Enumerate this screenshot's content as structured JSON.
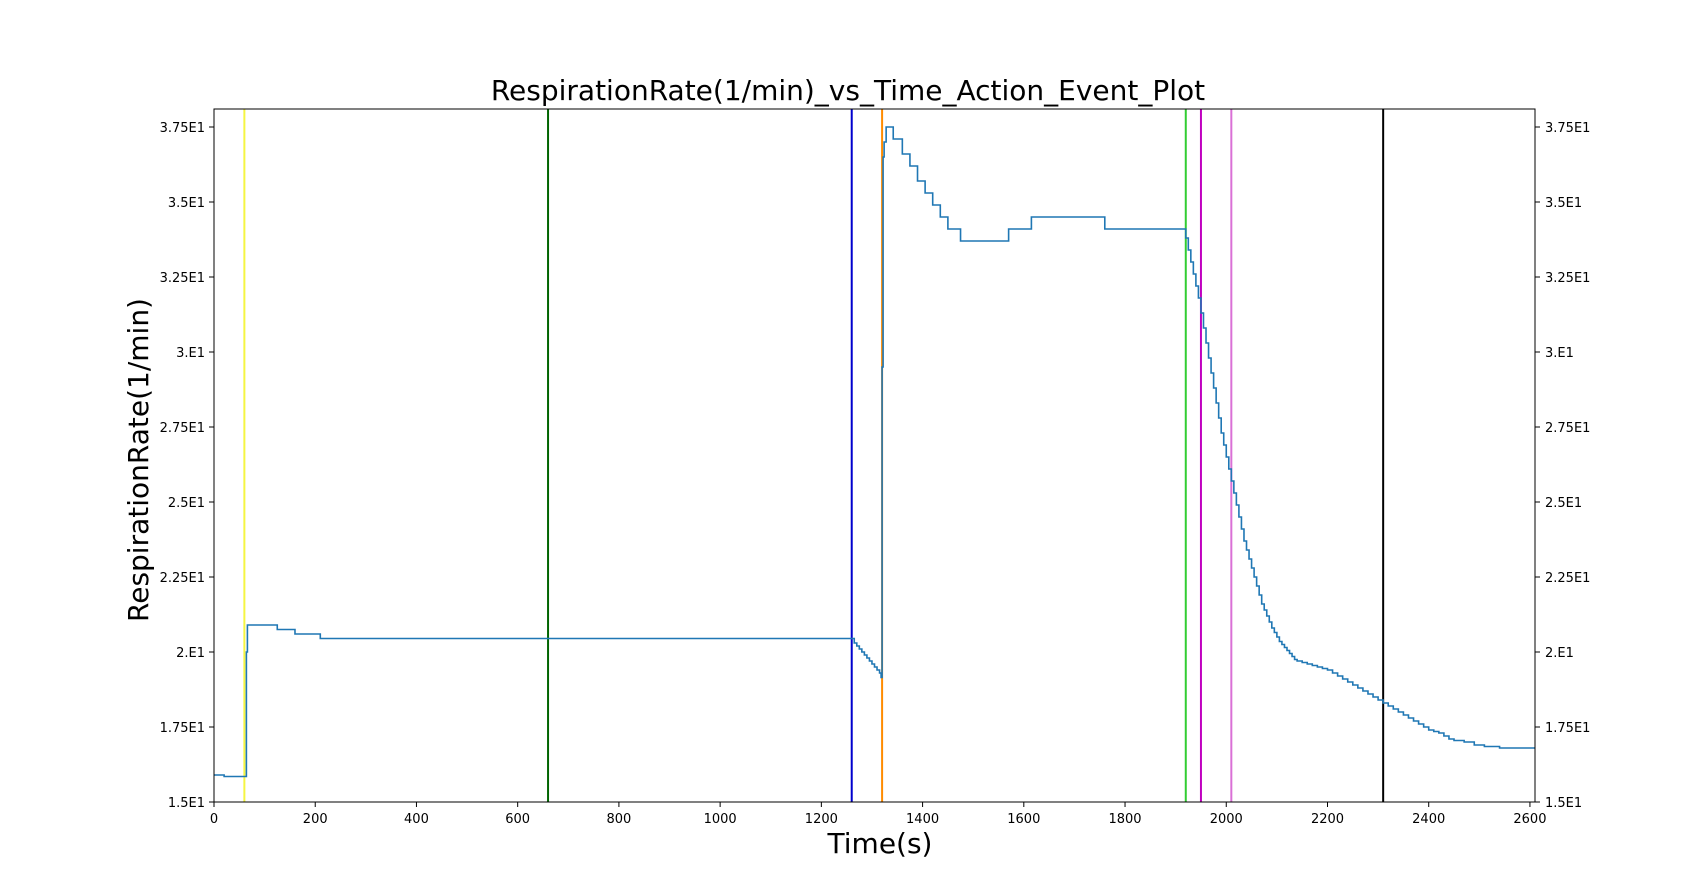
{
  "chart_data": {
    "type": "line",
    "title": "RespirationRate(1/min)_vs_Time_Action_Event_Plot",
    "xlabel": "Time(s)",
    "ylabel": "RespirationRate(1/min)",
    "xlim": [
      0,
      2610
    ],
    "ylim": [
      15.0,
      38.1
    ],
    "xticks": [
      0,
      200,
      400,
      600,
      800,
      1000,
      1200,
      1400,
      1600,
      1800,
      2000,
      2200,
      2400,
      2600
    ],
    "xtick_labels": [
      "0",
      "200",
      "400",
      "600",
      "800",
      "1000",
      "1200",
      "1400",
      "1600",
      "1800",
      "2000",
      "2200",
      "2400",
      "2600"
    ],
    "yticks": [
      15.0,
      17.5,
      20.0,
      22.5,
      25.0,
      27.5,
      30.0,
      32.5,
      35.0,
      37.5
    ],
    "ytick_labels": [
      "1.5E1",
      "1.75E1",
      "2.E1",
      "2.25E1",
      "2.5E1",
      "2.75E1",
      "3.E1",
      "3.25E1",
      "3.5E1",
      "3.75E1"
    ],
    "grid": false,
    "right_axis_labels": true,
    "series": [
      {
        "color": "#1f77b4",
        "step": true,
        "x": [
          0,
          20,
          62,
          64,
          66,
          68,
          125,
          160,
          210,
          1260,
          1265,
          1270,
          1275,
          1280,
          1285,
          1290,
          1295,
          1300,
          1305,
          1310,
          1315,
          1318,
          1320,
          1322,
          1324,
          1328,
          1342,
          1360,
          1375,
          1390,
          1405,
          1420,
          1435,
          1450,
          1475,
          1570,
          1615,
          1760,
          1880,
          1915,
          1920,
          1925,
          1930,
          1935,
          1940,
          1945,
          1950,
          1955,
          1960,
          1965,
          1970,
          1975,
          1980,
          1985,
          1990,
          1995,
          2000,
          2005,
          2010,
          2015,
          2020,
          2025,
          2030,
          2035,
          2040,
          2045,
          2050,
          2055,
          2060,
          2065,
          2070,
          2075,
          2080,
          2085,
          2090,
          2095,
          2100,
          2105,
          2110,
          2115,
          2120,
          2125,
          2130,
          2135,
          2140,
          2150,
          2160,
          2170,
          2180,
          2190,
          2200,
          2210,
          2220,
          2230,
          2240,
          2250,
          2260,
          2270,
          2280,
          2290,
          2300,
          2310,
          2320,
          2330,
          2340,
          2350,
          2360,
          2370,
          2380,
          2390,
          2400,
          2410,
          2420,
          2430,
          2440,
          2450,
          2470,
          2490,
          2510,
          2540,
          2570,
          2610
        ],
        "y": [
          15.9,
          15.85,
          15.85,
          20.0,
          20.9,
          20.9,
          20.75,
          20.6,
          20.45,
          20.45,
          20.3,
          20.2,
          20.1,
          20.0,
          19.9,
          19.8,
          19.7,
          19.6,
          19.5,
          19.4,
          19.3,
          19.15,
          29.5,
          36.5,
          37.0,
          37.5,
          37.1,
          36.6,
          36.2,
          35.7,
          35.3,
          34.9,
          34.5,
          34.1,
          33.7,
          34.1,
          34.5,
          34.1,
          34.1,
          34.1,
          33.8,
          33.4,
          33.0,
          32.6,
          32.2,
          31.8,
          31.3,
          30.8,
          30.3,
          29.8,
          29.3,
          28.8,
          28.3,
          27.8,
          27.3,
          26.9,
          26.5,
          26.1,
          25.7,
          25.3,
          24.9,
          24.5,
          24.1,
          23.7,
          23.4,
          23.1,
          22.8,
          22.5,
          22.2,
          21.9,
          21.6,
          21.4,
          21.2,
          21.0,
          20.8,
          20.65,
          20.5,
          20.35,
          20.25,
          20.15,
          20.05,
          19.95,
          19.85,
          19.75,
          19.7,
          19.65,
          19.6,
          19.55,
          19.5,
          19.45,
          19.4,
          19.3,
          19.2,
          19.1,
          19.0,
          18.9,
          18.8,
          18.7,
          18.6,
          18.5,
          18.4,
          18.3,
          18.2,
          18.1,
          18.0,
          17.9,
          17.8,
          17.7,
          17.6,
          17.5,
          17.4,
          17.35,
          17.3,
          17.2,
          17.1,
          17.05,
          17.0,
          16.9,
          16.85,
          16.8,
          16.8,
          16.8
        ]
      }
    ],
    "event_lines": [
      {
        "x": 60,
        "color": "#f5f542"
      },
      {
        "x": 660,
        "color": "#006400"
      },
      {
        "x": 1260,
        "color": "#0000cd"
      },
      {
        "x": 1320,
        "color": "#ff8c00"
      },
      {
        "x": 1920,
        "color": "#32cd32"
      },
      {
        "x": 1950,
        "color": "#c000c0"
      },
      {
        "x": 2010,
        "color": "#da70d6"
      },
      {
        "x": 2310,
        "color": "#000000"
      }
    ]
  }
}
